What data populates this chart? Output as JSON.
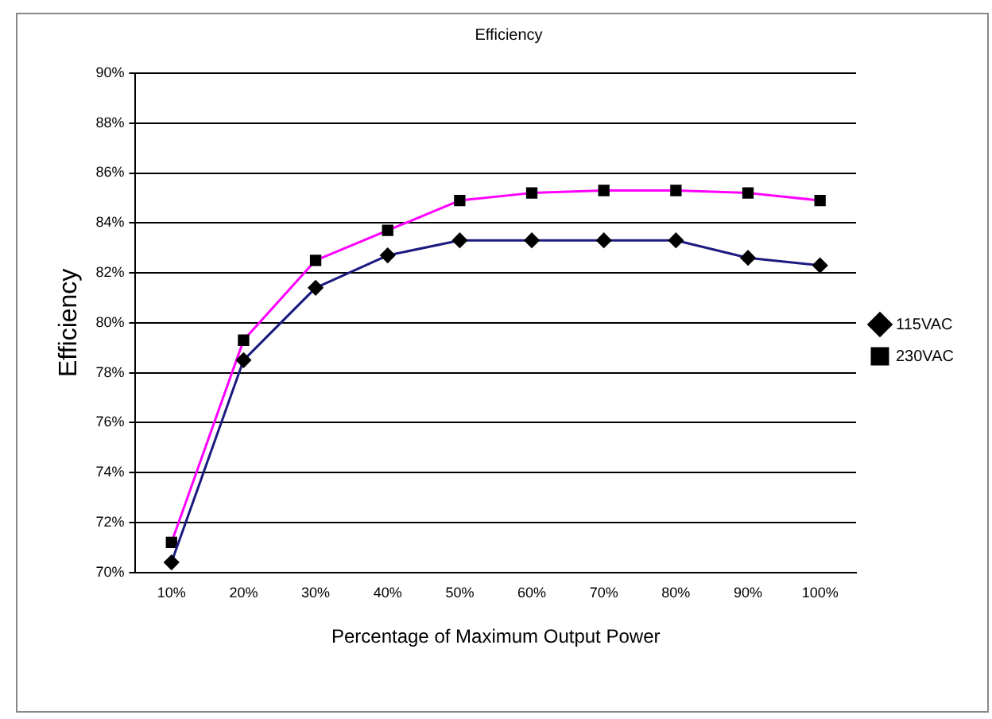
{
  "chart_data": {
    "type": "line",
    "title": "Efficiency",
    "xlabel": "Percentage of Maximum Output Power",
    "ylabel": "Efficiency",
    "categories": [
      "10%",
      "20%",
      "30%",
      "40%",
      "50%",
      "60%",
      "70%",
      "80%",
      "90%",
      "100%"
    ],
    "series": [
      {
        "name": "115VAC",
        "color": "#1a1a80",
        "marker": "diamond",
        "values": [
          70.4,
          78.5,
          81.4,
          82.7,
          83.3,
          83.3,
          83.3,
          83.3,
          82.6,
          82.3
        ]
      },
      {
        "name": "230VAC",
        "color": "#ff00ff",
        "marker": "square",
        "values": [
          71.2,
          79.3,
          82.5,
          83.7,
          84.9,
          85.2,
          85.3,
          85.3,
          85.2,
          84.9
        ]
      }
    ],
    "ylim": [
      70,
      90
    ],
    "yticks": [
      {
        "value": 70,
        "label": "70%"
      },
      {
        "value": 72,
        "label": "72%"
      },
      {
        "value": 74,
        "label": "74%"
      },
      {
        "value": 76,
        "label": "76%"
      },
      {
        "value": 78,
        "label": "78%"
      },
      {
        "value": 80,
        "label": "80%"
      },
      {
        "value": 82,
        "label": "82%"
      },
      {
        "value": 84,
        "label": "84%"
      },
      {
        "value": 86,
        "label": "86%"
      },
      {
        "value": 88,
        "label": "88%"
      },
      {
        "value": 90,
        "label": "90%"
      }
    ],
    "grid": "y",
    "legend": "right",
    "line_style": "solid"
  }
}
